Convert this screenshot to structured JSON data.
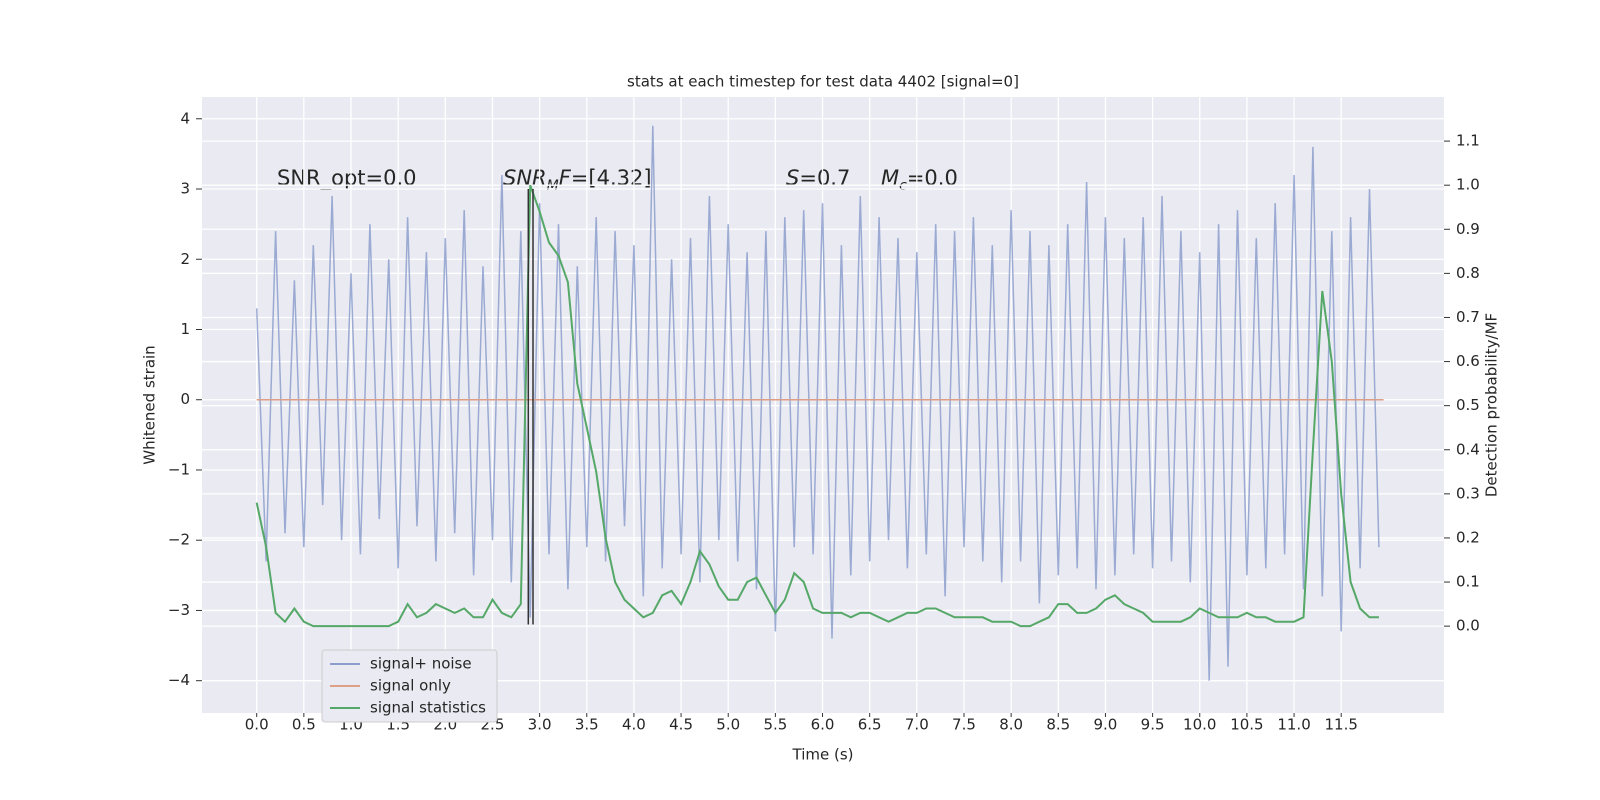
{
  "chart_data": {
    "type": "line",
    "title": "stats at each timestep for test data 4402 [signal=0]",
    "x_label": "Time (s)",
    "y_label": "Whitened strain",
    "y2_label": "Detection probability/MF",
    "xlim": [
      -0.58,
      12.59
    ],
    "ylim": [
      -4.46,
      4.31
    ],
    "y2lim": [
      -0.197,
      1.2
    ],
    "grid": true,
    "xticks": [
      {
        "value": 0,
        "label": "0.0"
      },
      {
        "value": 0.5,
        "label": "0.5"
      },
      {
        "value": 1,
        "label": "1.0"
      },
      {
        "value": 1.5,
        "label": "1.5"
      },
      {
        "value": 2,
        "label": "2.0"
      },
      {
        "value": 2.5,
        "label": "2.5"
      },
      {
        "value": 3,
        "label": "3.0"
      },
      {
        "value": 3.5,
        "label": "3.5"
      },
      {
        "value": 4,
        "label": "4.0"
      },
      {
        "value": 4.5,
        "label": "4.5"
      },
      {
        "value": 5,
        "label": "5.0"
      },
      {
        "value": 5.5,
        "label": "5.5"
      },
      {
        "value": 6,
        "label": "6.0"
      },
      {
        "value": 6.5,
        "label": "6.5"
      },
      {
        "value": 7,
        "label": "7.0"
      },
      {
        "value": 7.5,
        "label": "7.5"
      },
      {
        "value": 8,
        "label": "8.0"
      },
      {
        "value": 8.5,
        "label": "8.5"
      },
      {
        "value": 9,
        "label": "9.0"
      },
      {
        "value": 9.5,
        "label": "9.5"
      },
      {
        "value": 10,
        "label": "10.0"
      },
      {
        "value": 10.5,
        "label": "10.5"
      },
      {
        "value": 11,
        "label": "11.0"
      },
      {
        "value": 11.5,
        "label": "11.5"
      }
    ],
    "yticks": [
      {
        "value": -4,
        "label": "−4"
      },
      {
        "value": -3,
        "label": "−3"
      },
      {
        "value": -2,
        "label": "−2"
      },
      {
        "value": -1,
        "label": "−1"
      },
      0,
      1,
      2,
      3,
      4
    ],
    "y2ticks": [
      {
        "value": 0,
        "label": "0.0"
      },
      {
        "value": 0.1,
        "label": "0.1"
      },
      {
        "value": 0.2,
        "label": "0.2"
      },
      {
        "value": 0.3,
        "label": "0.3"
      },
      {
        "value": 0.4,
        "label": "0.4"
      },
      {
        "value": 0.5,
        "label": "0.5"
      },
      {
        "value": 0.6,
        "label": "0.6"
      },
      {
        "value": 0.7,
        "label": "0.7"
      },
      {
        "value": 0.8,
        "label": "0.8"
      },
      {
        "value": 0.9,
        "label": "0.9"
      },
      {
        "value": 1.0,
        "label": "1.0"
      },
      {
        "value": 1.1,
        "label": "1.1"
      }
    ],
    "x": [
      0,
      0.1,
      0.2,
      0.3,
      0.4,
      0.5,
      0.6,
      0.7,
      0.8,
      0.9,
      1,
      1.1,
      1.2,
      1.3,
      1.4,
      1.5,
      1.6,
      1.7,
      1.8,
      1.9,
      2,
      2.1,
      2.2,
      2.3,
      2.4,
      2.5,
      2.6,
      2.7,
      2.8,
      2.9,
      3,
      3.1,
      3.2,
      3.3,
      3.4,
      3.5,
      3.6,
      3.7,
      3.8,
      3.9,
      4,
      4.1,
      4.2,
      4.3,
      4.4,
      4.5,
      4.6,
      4.7,
      4.8,
      4.9,
      5,
      5.1,
      5.2,
      5.3,
      5.4,
      5.5,
      5.6,
      5.7,
      5.8,
      5.9,
      6,
      6.1,
      6.2,
      6.3,
      6.4,
      6.5,
      6.6,
      6.7,
      6.8,
      6.9,
      7,
      7.1,
      7.2,
      7.3,
      7.4,
      7.5,
      7.6,
      7.7,
      7.8,
      7.9,
      8,
      8.1,
      8.2,
      8.3,
      8.4,
      8.5,
      8.6,
      8.7,
      8.8,
      8.9,
      9,
      9.1,
      9.2,
      9.3,
      9.4,
      9.5,
      9.6,
      9.7,
      9.8,
      9.9,
      10,
      10.1,
      10.2,
      10.3,
      10.4,
      10.5,
      10.6,
      10.7,
      10.8,
      10.9,
      11,
      11.1,
      11.2,
      11.3,
      11.4,
      11.5,
      11.6,
      11.7,
      11.8,
      11.9
    ],
    "series": [
      {
        "name": "signal+ noise",
        "color": "#8c9fcc",
        "values": [
          1.3,
          -2.3,
          2.4,
          -1.9,
          1.7,
          -2.1,
          2.2,
          -1.5,
          2.9,
          -2.0,
          1.8,
          -2.2,
          2.5,
          -1.7,
          2.0,
          -2.4,
          2.6,
          -1.8,
          2.1,
          -2.3,
          2.3,
          -1.9,
          2.7,
          -2.5,
          1.9,
          -2.0,
          3.2,
          -2.6,
          2.4,
          -3.1,
          2.8,
          -2.2,
          2.5,
          -2.7,
          1.9,
          -2.1,
          2.6,
          -2.3,
          2.4,
          -1.8,
          2.2,
          -2.8,
          3.9,
          -2.4,
          2.0,
          -2.2,
          2.3,
          -2.6,
          2.9,
          -2.0,
          2.5,
          -2.3,
          2.1,
          -2.7,
          2.4,
          -3.3,
          2.6,
          -2.1,
          2.7,
          -2.2,
          2.8,
          -3.4,
          2.2,
          -2.5,
          2.9,
          -2.3,
          2.6,
          -2.0,
          2.3,
          -2.4,
          2.1,
          -2.2,
          2.5,
          -2.8,
          2.4,
          -2.1,
          2.6,
          -2.3,
          2.2,
          -2.6,
          2.7,
          -2.3,
          2.4,
          -2.9,
          2.2,
          -2.5,
          2.5,
          -2.4,
          3.1,
          -2.7,
          2.6,
          -2.5,
          2.3,
          -2.2,
          2.6,
          -2.4,
          2.9,
          -2.3,
          2.4,
          -2.6,
          2.1,
          -4.0,
          2.5,
          -3.8,
          2.7,
          -2.5,
          2.3,
          -2.4,
          2.8,
          -2.2,
          3.2,
          -2.7,
          3.6,
          -2.8,
          2.4,
          -3.3,
          2.6,
          -2.4,
          3.0,
          -2.1
        ]
      },
      {
        "name": "signal only",
        "color": "#dd9f85",
        "x": [
          0,
          11.95
        ],
        "values": [
          0,
          0
        ]
      },
      {
        "name": "signal statistics",
        "color": "#55a868",
        "axis": "y2",
        "values": [
          0.28,
          0.18,
          0.03,
          0.01,
          0.04,
          0.01,
          0.0,
          0.0,
          0.0,
          0.0,
          0.0,
          0.0,
          0.0,
          0.0,
          0.0,
          0.01,
          0.05,
          0.02,
          0.03,
          0.05,
          0.04,
          0.03,
          0.04,
          0.02,
          0.02,
          0.06,
          0.03,
          0.02,
          0.05,
          1.0,
          0.94,
          0.87,
          0.84,
          0.78,
          0.55,
          0.45,
          0.35,
          0.2,
          0.1,
          0.06,
          0.04,
          0.02,
          0.03,
          0.07,
          0.08,
          0.05,
          0.1,
          0.17,
          0.14,
          0.09,
          0.06,
          0.06,
          0.1,
          0.11,
          0.07,
          0.03,
          0.06,
          0.12,
          0.1,
          0.04,
          0.03,
          0.03,
          0.03,
          0.02,
          0.03,
          0.03,
          0.02,
          0.01,
          0.02,
          0.03,
          0.03,
          0.04,
          0.04,
          0.03,
          0.02,
          0.02,
          0.02,
          0.02,
          0.01,
          0.01,
          0.01,
          0.0,
          0.0,
          0.01,
          0.02,
          0.05,
          0.05,
          0.03,
          0.03,
          0.04,
          0.06,
          0.07,
          0.05,
          0.04,
          0.03,
          0.01,
          0.01,
          0.01,
          0.01,
          0.02,
          0.04,
          0.03,
          0.02,
          0.02,
          0.02,
          0.03,
          0.02,
          0.02,
          0.01,
          0.01,
          0.01,
          0.02,
          0.4,
          0.76,
          0.6,
          0.3,
          0.1,
          0.04,
          0.02,
          0.02
        ]
      }
    ],
    "vlines": {
      "color": "#333333",
      "x": [
        2.88,
        2.93
      ],
      "ymin": [
        -3.2,
        -3.2
      ],
      "ymax": [
        3.0,
        3.0
      ]
    },
    "annotations": [
      [
        {
          "text": "SNR_opt=0.0",
          "style": "normal"
        }
      ],
      [
        {
          "text": "SNR",
          "style": "italic"
        },
        {
          "text": "M",
          "style": "sub"
        },
        {
          "text": "F",
          "style": "italic"
        },
        {
          "text": "=[4.32]",
          "style": "normal"
        }
      ],
      [
        {
          "text": "S",
          "style": "italic"
        },
        {
          "text": "=0.7",
          "style": "normal"
        }
      ],
      [
        {
          "text": "M",
          "style": "italic"
        },
        {
          "text": "c",
          "style": "sub"
        },
        {
          "text": "=0.0",
          "style": "normal"
        }
      ]
    ]
  }
}
